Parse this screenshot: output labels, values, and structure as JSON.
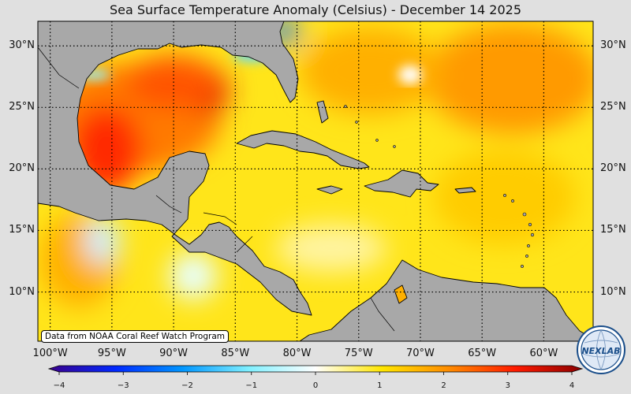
{
  "title": "Sea Surface Temperature Anomaly (Celsius) - December 14 2025",
  "credit": "Data from NOAA Coral Reef Watch Program",
  "logo": {
    "text": "NEXLAB",
    "icon": "nexlab-globe-logo"
  },
  "map": {
    "projection": "equirectangular",
    "lon_range": [
      -101,
      -56
    ],
    "lat_range": [
      6,
      32
    ],
    "grid": true,
    "lat_ticks": [
      {
        "value": 30,
        "label": "30°N"
      },
      {
        "value": 25,
        "label": "25°N"
      },
      {
        "value": 20,
        "label": "20°N"
      },
      {
        "value": 15,
        "label": "15°N"
      },
      {
        "value": 10,
        "label": "10°N"
      }
    ],
    "lon_ticks": [
      {
        "value": -100,
        "label": "100°W"
      },
      {
        "value": -95,
        "label": "95°W"
      },
      {
        "value": -90,
        "label": "90°W"
      },
      {
        "value": -85,
        "label": "85°W"
      },
      {
        "value": -80,
        "label": "80°W"
      },
      {
        "value": -75,
        "label": "75°W"
      },
      {
        "value": -70,
        "label": "70°W"
      },
      {
        "value": -65,
        "label": "65°W"
      },
      {
        "value": -60,
        "label": "60°W"
      }
    ],
    "colors": {
      "land": "#a8a8a8",
      "ocean_base": "#ffe51a",
      "border": "#000000"
    }
  },
  "colorbar": {
    "min": -4,
    "max": 4,
    "ticks": [
      {
        "value": -4,
        "label": "−4"
      },
      {
        "value": -3,
        "label": "−3"
      },
      {
        "value": -2,
        "label": "−2"
      },
      {
        "value": -1,
        "label": "−1"
      },
      {
        "value": 0,
        "label": "0"
      },
      {
        "value": 1,
        "label": "1"
      },
      {
        "value": 2,
        "label": "2"
      },
      {
        "value": 3,
        "label": "3"
      },
      {
        "value": 4,
        "label": "4"
      }
    ],
    "stops": [
      {
        "value": -4,
        "color": "#3a008c"
      },
      {
        "value": -3,
        "color": "#0028ff"
      },
      {
        "value": -2,
        "color": "#0096ff"
      },
      {
        "value": -1,
        "color": "#80f0ff"
      },
      {
        "value": 0,
        "color": "#ffffff"
      },
      {
        "value": 1,
        "color": "#ffe600"
      },
      {
        "value": 2,
        "color": "#ff8c00"
      },
      {
        "value": 3,
        "color": "#ff1a00"
      },
      {
        "value": 4,
        "color": "#8c0000"
      }
    ]
  }
}
